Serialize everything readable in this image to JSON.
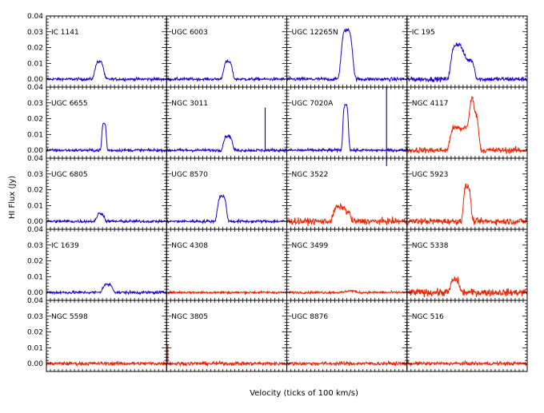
{
  "chart_data": {
    "type": "line",
    "ylabel": "HI Flux (Jy)",
    "xlabel": "Velocity (ticks of 100 km/s)",
    "ylim": [
      -0.005,
      0.04
    ],
    "yticks": [
      "0.04",
      "0.03",
      "0.02",
      "0.01",
      "0.00"
    ],
    "grid": "5 rows × 4 columns of panels",
    "colors": {
      "blue": "#2200cc",
      "red": "#ee2200"
    },
    "panels": [
      {
        "name": "IC 1141",
        "color": "blue",
        "peaks": [
          {
            "x": 0.44,
            "w": 0.035,
            "h": 0.011
          }
        ],
        "noise": 0.0009
      },
      {
        "name": "UGC 6003",
        "color": "blue",
        "peaks": [
          {
            "x": 0.51,
            "w": 0.035,
            "h": 0.011
          }
        ],
        "noise": 0.0009
      },
      {
        "name": "UGC 12265N",
        "color": "blue",
        "peaks": [
          {
            "x": 0.5,
            "w": 0.045,
            "h": 0.031
          }
        ],
        "noise": 0.0011
      },
      {
        "name": "IC 195",
        "color": "blue",
        "peaks": [
          {
            "x": 0.42,
            "w": 0.05,
            "h": 0.022
          },
          {
            "x": 0.52,
            "w": 0.04,
            "h": 0.012
          }
        ],
        "noise": 0.0014
      },
      {
        "name": "UGC 6655",
        "color": "blue",
        "peaks": [
          {
            "x": 0.48,
            "w": 0.018,
            "h": 0.017
          }
        ],
        "noise": 0.0009
      },
      {
        "name": "NGC 3011",
        "color": "blue",
        "peaks": [
          {
            "x": 0.51,
            "w": 0.035,
            "h": 0.009
          }
        ],
        "spikes": [
          {
            "x": 0.82,
            "h": 0.027
          }
        ],
        "noise": 0.0009
      },
      {
        "name": "UGC 7020A",
        "color": "blue",
        "peaks": [
          {
            "x": 0.49,
            "w": 0.022,
            "h": 0.029
          }
        ],
        "spikes": [
          {
            "x": 0.83,
            "h": 0.04
          },
          {
            "x": 0.83,
            "h": -0.01
          }
        ],
        "noise": 0.0009
      },
      {
        "name": "NGC 4117",
        "color": "red",
        "peaks": [
          {
            "x": 0.4,
            "w": 0.04,
            "h": 0.014
          },
          {
            "x": 0.56,
            "w": 0.035,
            "h": 0.022
          },
          {
            "x": 0.5,
            "w": 0.05,
            "h": 0.015
          }
        ],
        "noise": 0.0018
      },
      {
        "name": "UGC 6805",
        "color": "blue",
        "peaks": [
          {
            "x": 0.45,
            "w": 0.03,
            "h": 0.005
          }
        ],
        "noise": 0.0009
      },
      {
        "name": "UGC 8570",
        "color": "blue",
        "peaks": [
          {
            "x": 0.46,
            "w": 0.035,
            "h": 0.016
          }
        ],
        "noise": 0.0009
      },
      {
        "name": "NGC 3522",
        "color": "red",
        "peaks": [
          {
            "x": 0.43,
            "w": 0.04,
            "h": 0.009
          },
          {
            "x": 0.5,
            "w": 0.03,
            "h": 0.006
          }
        ],
        "noise": 0.0019
      },
      {
        "name": "UGC 5923",
        "color": "red",
        "peaks": [
          {
            "x": 0.5,
            "w": 0.03,
            "h": 0.022
          }
        ],
        "noise": 0.0019
      },
      {
        "name": "IC 1639",
        "color": "blue",
        "peaks": [
          {
            "x": 0.51,
            "w": 0.04,
            "h": 0.005
          }
        ],
        "noise": 0.0009
      },
      {
        "name": "NGC 4308",
        "color": "red",
        "peaks": [],
        "noise": 0.0007
      },
      {
        "name": "NGC 3499",
        "color": "red",
        "peaks": [
          {
            "x": 0.53,
            "w": 0.04,
            "h": 0.001
          }
        ],
        "noise": 0.0007
      },
      {
        "name": "NGC 5338",
        "color": "red",
        "peaks": [
          {
            "x": 0.4,
            "w": 0.035,
            "h": 0.008
          }
        ],
        "noise": 0.0022
      },
      {
        "name": "NGC 5598",
        "color": "red",
        "peaks": [],
        "spikes": [
          {
            "x": 0.0,
            "h": 0.007
          }
        ],
        "noise": 0.0011
      },
      {
        "name": "NGC 3805",
        "color": "red",
        "peaks": [],
        "spikes": [
          {
            "x": 0.01,
            "h": 0.012
          }
        ],
        "noise": 0.0011
      },
      {
        "name": "UGC 8876",
        "color": "red",
        "peaks": [],
        "noise": 0.0011
      },
      {
        "name": "NGC 516",
        "color": "red",
        "peaks": [],
        "noise": 0.0011
      }
    ]
  }
}
